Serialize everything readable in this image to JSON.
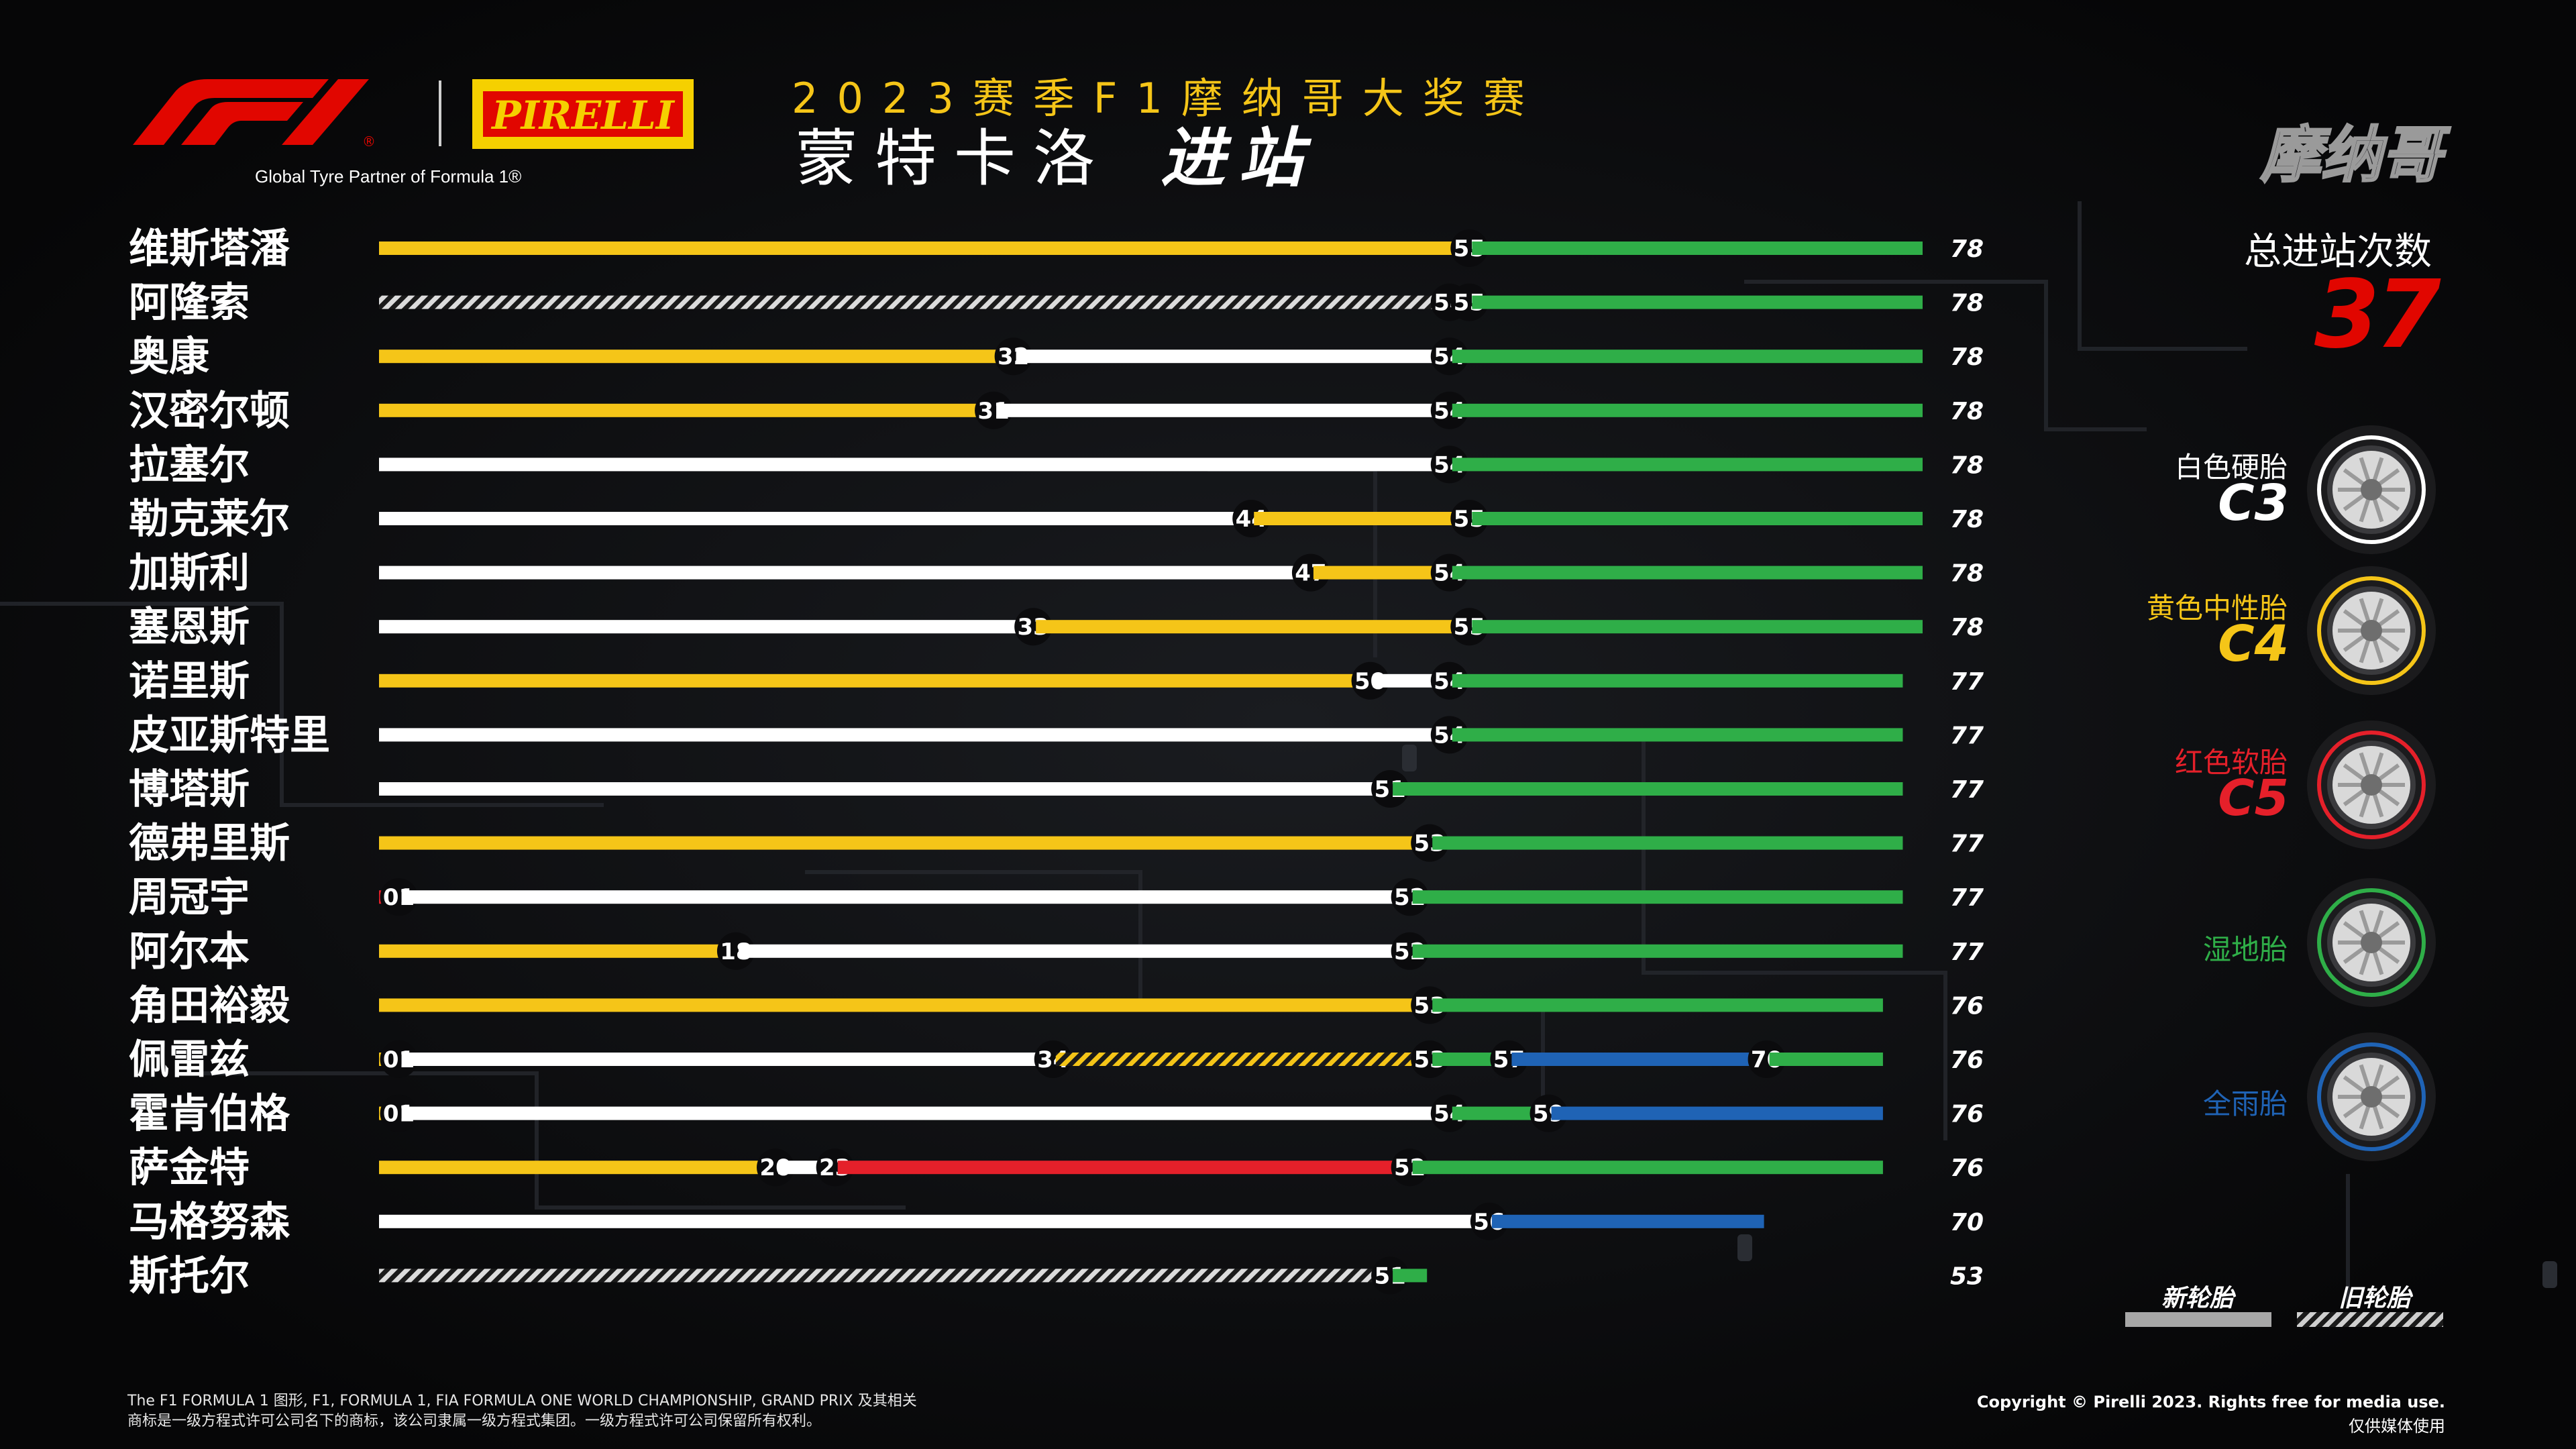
{
  "header": {
    "f1_logo": "F1",
    "pirelli_logo": "PIRELLI",
    "tagline": "Global Tyre Partner of Formula 1®",
    "title_line1": "2023赛季F1摩纳哥大奖赛",
    "title_line2_part1": "蒙特卡洛",
    "title_line2_part2": "进站",
    "gp_watermark": "摩纳哥"
  },
  "summary": {
    "total_stops_label": "总进站次数",
    "total_stops_value": "37"
  },
  "legend": {
    "compounds": [
      {
        "name": "白色硬胎",
        "code": "C3",
        "color": "#ffffff",
        "icon": "hard-tyre-icon"
      },
      {
        "name": "黄色中性胎",
        "code": "C4",
        "color": "#f5c518",
        "icon": "medium-tyre-icon"
      },
      {
        "name": "红色软胎",
        "code": "C5",
        "color": "#e5202a",
        "icon": "soft-tyre-icon"
      },
      {
        "name": "湿地胎",
        "code": "",
        "color": "#2fae48",
        "icon": "intermediate-tyre-icon"
      },
      {
        "name": "全雨胎",
        "code": "",
        "color": "#1f63b5",
        "icon": "wet-tyre-icon"
      }
    ],
    "new_label": "新轮胎",
    "used_label": "旧轮胎"
  },
  "chart_data": {
    "type": "bar",
    "title": "2023赛季F1摩纳哥大奖赛 蒙特卡洛 进站",
    "x_unit": "lap",
    "xlim": [
      0,
      78
    ],
    "colors": {
      "hard": "#ffffff",
      "medium": "#f5c518",
      "soft": "#e5202a",
      "intermediate": "#2fae48",
      "wet": "#1f63b5"
    },
    "drivers": [
      {
        "name": "维斯塔潘",
        "total": 78,
        "stints": [
          {
            "compound": "medium",
            "start": 0,
            "end": 55,
            "used": false
          },
          {
            "compound": "intermediate",
            "start": 55,
            "end": 78,
            "used": false
          }
        ]
      },
      {
        "name": "阿隆索",
        "total": 78,
        "stints": [
          {
            "compound": "hard",
            "start": 0,
            "end": 54,
            "used": true
          },
          {
            "compound": "medium",
            "start": 54,
            "end": 55,
            "used": false
          },
          {
            "compound": "intermediate",
            "start": 55,
            "end": 78,
            "used": false
          }
        ]
      },
      {
        "name": "奥康",
        "total": 78,
        "stints": [
          {
            "compound": "medium",
            "start": 0,
            "end": 32,
            "used": false
          },
          {
            "compound": "hard",
            "start": 32,
            "end": 54,
            "used": false
          },
          {
            "compound": "intermediate",
            "start": 54,
            "end": 78,
            "used": false
          }
        ]
      },
      {
        "name": "汉密尔顿",
        "total": 78,
        "stints": [
          {
            "compound": "medium",
            "start": 0,
            "end": 31,
            "used": false
          },
          {
            "compound": "hard",
            "start": 31,
            "end": 54,
            "used": false
          },
          {
            "compound": "intermediate",
            "start": 54,
            "end": 78,
            "used": false
          }
        ]
      },
      {
        "name": "拉塞尔",
        "total": 78,
        "stints": [
          {
            "compound": "hard",
            "start": 0,
            "end": 54,
            "used": false
          },
          {
            "compound": "intermediate",
            "start": 54,
            "end": 78,
            "used": false
          }
        ]
      },
      {
        "name": "勒克莱尔",
        "total": 78,
        "stints": [
          {
            "compound": "hard",
            "start": 0,
            "end": 44,
            "used": false
          },
          {
            "compound": "medium",
            "start": 44,
            "end": 55,
            "used": false
          },
          {
            "compound": "intermediate",
            "start": 55,
            "end": 78,
            "used": false
          }
        ]
      },
      {
        "name": "加斯利",
        "total": 78,
        "stints": [
          {
            "compound": "hard",
            "start": 0,
            "end": 47,
            "used": false
          },
          {
            "compound": "medium",
            "start": 47,
            "end": 54,
            "used": false
          },
          {
            "compound": "intermediate",
            "start": 54,
            "end": 78,
            "used": false
          }
        ]
      },
      {
        "name": "塞恩斯",
        "total": 78,
        "stints": [
          {
            "compound": "hard",
            "start": 0,
            "end": 33,
            "used": false
          },
          {
            "compound": "medium",
            "start": 33,
            "end": 55,
            "used": false
          },
          {
            "compound": "intermediate",
            "start": 55,
            "end": 78,
            "used": false
          }
        ]
      },
      {
        "name": "诺里斯",
        "total": 77,
        "stints": [
          {
            "compound": "medium",
            "start": 0,
            "end": 50,
            "used": false
          },
          {
            "compound": "hard",
            "start": 50,
            "end": 54,
            "used": false
          },
          {
            "compound": "intermediate",
            "start": 54,
            "end": 77,
            "used": false
          }
        ]
      },
      {
        "name": "皮亚斯特里",
        "total": 77,
        "stints": [
          {
            "compound": "hard",
            "start": 0,
            "end": 54,
            "used": false
          },
          {
            "compound": "intermediate",
            "start": 54,
            "end": 77,
            "used": false
          }
        ]
      },
      {
        "name": "博塔斯",
        "total": 77,
        "stints": [
          {
            "compound": "hard",
            "start": 0,
            "end": 51,
            "used": false
          },
          {
            "compound": "intermediate",
            "start": 51,
            "end": 77,
            "used": false
          }
        ]
      },
      {
        "name": "德弗里斯",
        "total": 77,
        "stints": [
          {
            "compound": "medium",
            "start": 0,
            "end": 53,
            "used": false
          },
          {
            "compound": "intermediate",
            "start": 53,
            "end": 77,
            "used": false
          }
        ]
      },
      {
        "name": "周冠宇",
        "total": 77,
        "stints": [
          {
            "compound": "soft",
            "start": 0,
            "end": 1,
            "used": false
          },
          {
            "compound": "hard",
            "start": 1,
            "end": 52,
            "used": false
          },
          {
            "compound": "intermediate",
            "start": 52,
            "end": 77,
            "used": false
          }
        ]
      },
      {
        "name": "阿尔本",
        "total": 77,
        "stints": [
          {
            "compound": "medium",
            "start": 0,
            "end": 18,
            "used": false
          },
          {
            "compound": "hard",
            "start": 18,
            "end": 52,
            "used": false
          },
          {
            "compound": "intermediate",
            "start": 52,
            "end": 77,
            "used": false
          }
        ]
      },
      {
        "name": "角田裕毅",
        "total": 76,
        "stints": [
          {
            "compound": "medium",
            "start": 0,
            "end": 53,
            "used": false
          },
          {
            "compound": "intermediate",
            "start": 53,
            "end": 76,
            "used": false
          }
        ]
      },
      {
        "name": "佩雷兹",
        "total": 76,
        "stints": [
          {
            "compound": "medium",
            "start": 0,
            "end": 1,
            "used": false
          },
          {
            "compound": "hard",
            "start": 1,
            "end": 34,
            "used": false
          },
          {
            "compound": "medium",
            "start": 34,
            "end": 53,
            "used": true
          },
          {
            "compound": "intermediate",
            "start": 53,
            "end": 57,
            "used": false
          },
          {
            "compound": "wet",
            "start": 57,
            "end": 70,
            "used": false
          },
          {
            "compound": "intermediate",
            "start": 70,
            "end": 76,
            "used": false
          }
        ]
      },
      {
        "name": "霍肯伯格",
        "total": 76,
        "stints": [
          {
            "compound": "medium",
            "start": 0,
            "end": 1,
            "used": false
          },
          {
            "compound": "hard",
            "start": 1,
            "end": 54,
            "used": false
          },
          {
            "compound": "intermediate",
            "start": 54,
            "end": 59,
            "used": false
          },
          {
            "compound": "wet",
            "start": 59,
            "end": 76,
            "used": false
          }
        ]
      },
      {
        "name": "萨金特",
        "total": 76,
        "stints": [
          {
            "compound": "medium",
            "start": 0,
            "end": 20,
            "used": false
          },
          {
            "compound": "hard",
            "start": 20,
            "end": 23,
            "used": false
          },
          {
            "compound": "soft",
            "start": 23,
            "end": 52,
            "used": false
          },
          {
            "compound": "intermediate",
            "start": 52,
            "end": 76,
            "used": false
          }
        ]
      },
      {
        "name": "马格努森",
        "total": 70,
        "stints": [
          {
            "compound": "hard",
            "start": 0,
            "end": 56,
            "used": false
          },
          {
            "compound": "wet",
            "start": 56,
            "end": 70,
            "used": false
          }
        ]
      },
      {
        "name": "斯托尔",
        "total": 53,
        "stints": [
          {
            "compound": "hard",
            "start": 0,
            "end": 51,
            "used": true
          },
          {
            "compound": "intermediate",
            "start": 51,
            "end": 53,
            "used": false
          }
        ]
      }
    ]
  },
  "footer": {
    "legal_line1": "The F1 FORMULA 1 图形, F1, FORMULA 1, FIA FORMULA ONE WORLD CHAMPIONSHIP, GRAND PRIX 及其相关",
    "legal_line2": "商标是一级方程式许可公司名下的商标，该公司隶属一级方程式集团。一级方程式许可公司保留所有权利。",
    "copyright": "Copyright © Pirelli 2023. Rights free for media use.",
    "media_use": "仅供媒体使用"
  }
}
